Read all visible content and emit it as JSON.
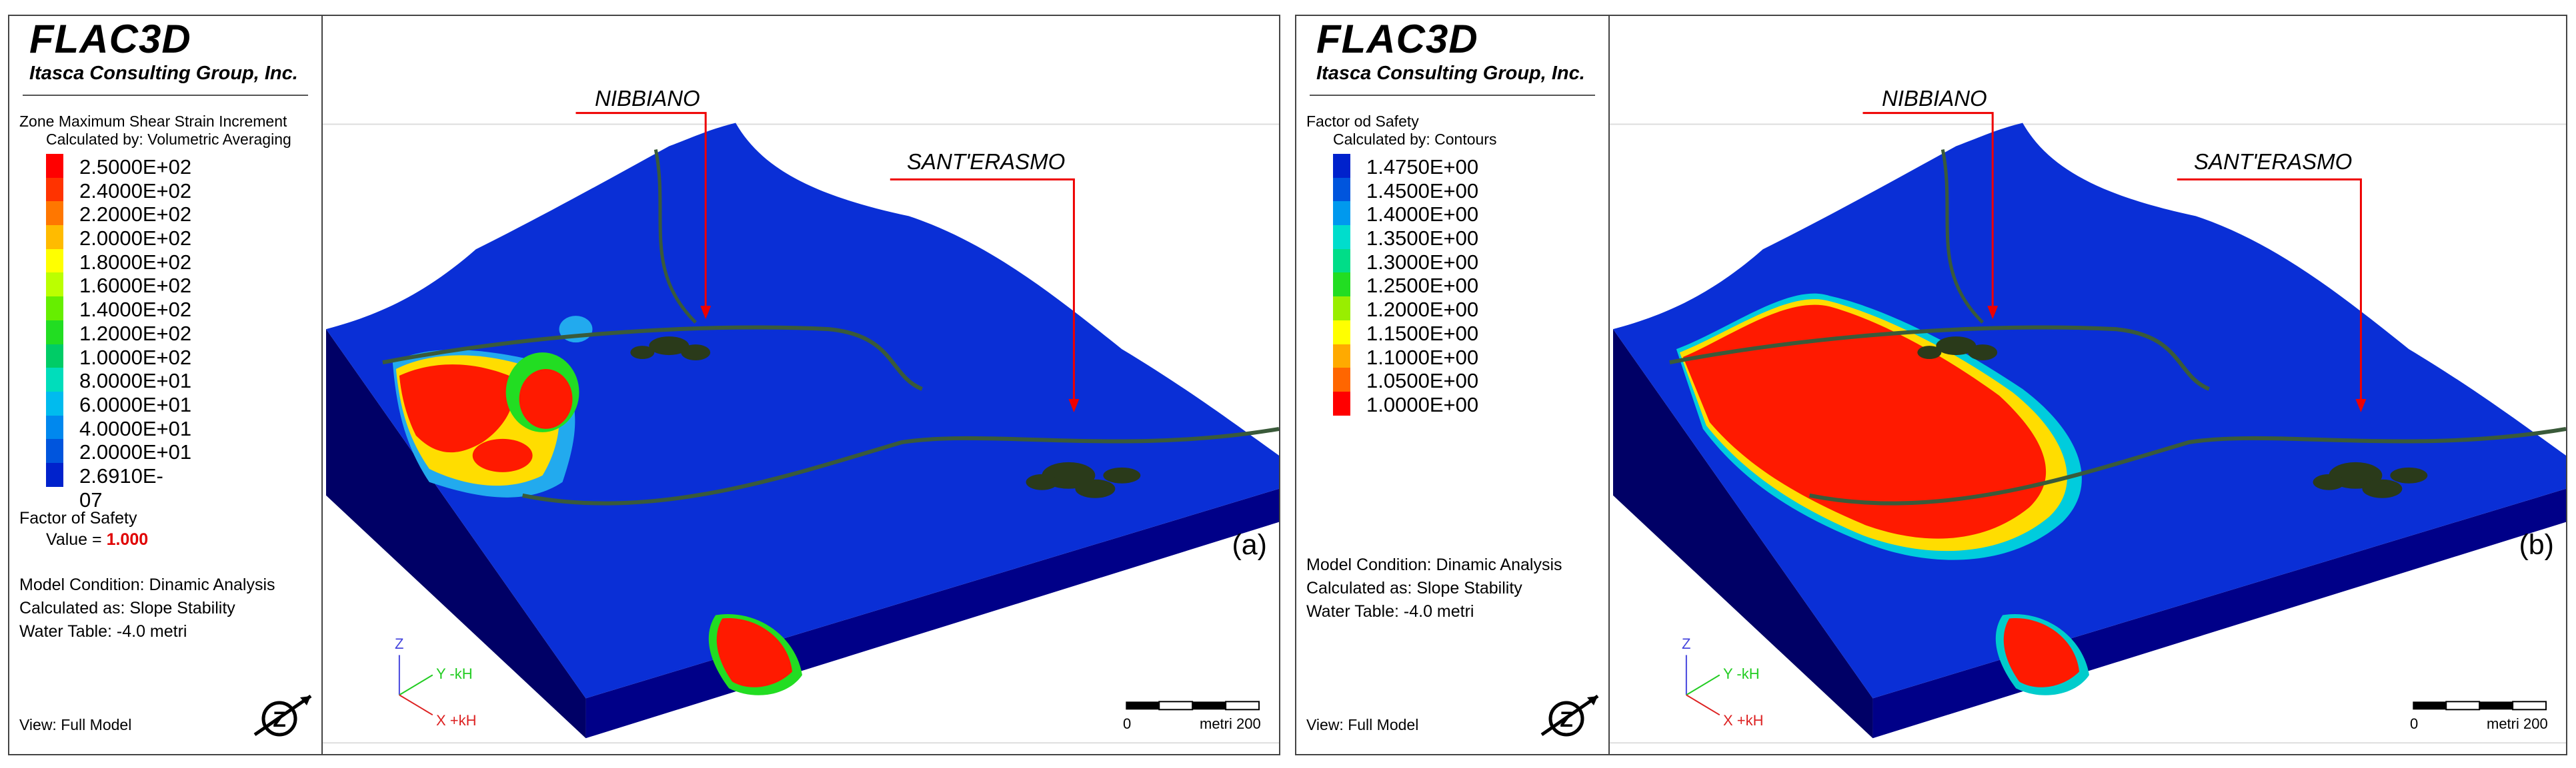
{
  "panels": [
    {
      "id": "a",
      "logo": {
        "title": "FLAC3D",
        "subtitle": "Itasca Consulting Group, Inc."
      },
      "legend_title": "Zone Maximum Shear Strain Increment",
      "legend_subtitle": "Calculated by: Volumetric Averaging",
      "scale": [
        {
          "value": "2.5000E+02",
          "color": "#ff0000"
        },
        {
          "value": "2.4000E+02",
          "color": "#ff3300"
        },
        {
          "value": "2.2000E+02",
          "color": "#ff7700"
        },
        {
          "value": "2.0000E+02",
          "color": "#ffbb00"
        },
        {
          "value": "1.8000E+02",
          "color": "#ffff00"
        },
        {
          "value": "1.6000E+02",
          "color": "#bbff00"
        },
        {
          "value": "1.4000E+02",
          "color": "#66ee00"
        },
        {
          "value": "1.2000E+02",
          "color": "#22dd22"
        },
        {
          "value": "1.0000E+02",
          "color": "#00cc66"
        },
        {
          "value": "8.0000E+01",
          "color": "#00ddbb"
        },
        {
          "value": "6.0000E+01",
          "color": "#00bbee"
        },
        {
          "value": "4.0000E+01",
          "color": "#0088ee"
        },
        {
          "value": "2.0000E+01",
          "color": "#0055dd"
        },
        {
          "value": "2.6910E-07",
          "color": "#0022cc"
        }
      ],
      "fos": {
        "label": "Factor of Safety",
        "value_label": "Value = ",
        "value": "1.000"
      },
      "model_condition": "Model Condition: Dinamic Analysis",
      "calculated_as": "Calculated as: Slope Stability",
      "water_table": "Water Table: -4.0 metri",
      "view": "View: Full Model",
      "site1": "NIBBIANO",
      "site2": "SANT'ERASMO",
      "tag": "(a)",
      "axes": {
        "z": "Z",
        "y": "Y -kH",
        "x": "X +kH"
      },
      "scalebar": {
        "zero": "0",
        "unit": "metri 200"
      }
    },
    {
      "id": "b",
      "logo": {
        "title": "FLAC3D",
        "subtitle": "Itasca Consulting Group, Inc."
      },
      "legend_title": "Factor od Safety",
      "legend_subtitle": "Calculated by: Contours",
      "scale": [
        {
          "value": "1.4750E+00",
          "color": "#0022cc"
        },
        {
          "value": "1.4500E+00",
          "color": "#0055dd"
        },
        {
          "value": "1.4000E+00",
          "color": "#0099ee"
        },
        {
          "value": "1.3500E+00",
          "color": "#00ddcc"
        },
        {
          "value": "1.3000E+00",
          "color": "#00dd88"
        },
        {
          "value": "1.2500E+00",
          "color": "#22dd22"
        },
        {
          "value": "1.2000E+00",
          "color": "#99ee00"
        },
        {
          "value": "1.1500E+00",
          "color": "#ffff00"
        },
        {
          "value": "1.1000E+00",
          "color": "#ffaa00"
        },
        {
          "value": "1.0500E+00",
          "color": "#ff6600"
        },
        {
          "value": "1.0000E+00",
          "color": "#ff0000"
        }
      ],
      "model_condition": "Model Condition: Dinamic Analysis",
      "calculated_as": "Calculated as: Slope Stability",
      "water_table": "Water Table: -4.0 metri",
      "view": "View: Full Model",
      "site1": "NIBBIANO",
      "site2": "SANT'ERASMO",
      "tag": "(b)",
      "axes": {
        "z": "Z",
        "y": "Y -kH",
        "x": "X +kH"
      },
      "scalebar": {
        "zero": "0",
        "unit": "metri 200"
      }
    }
  ]
}
